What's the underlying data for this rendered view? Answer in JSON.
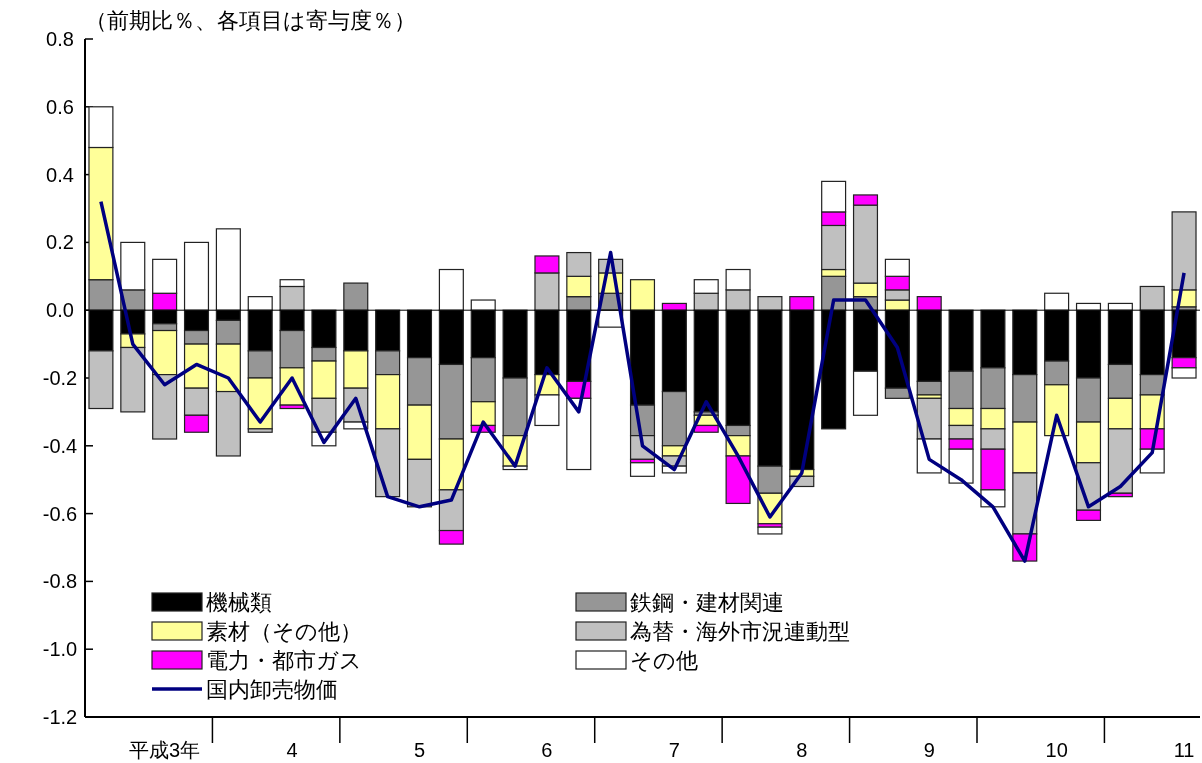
{
  "chart_data": {
    "type": "bar",
    "stacked": true,
    "annotations": [
      "（前期比％、各項目は寄与度％）"
    ],
    "categories": [
      null,
      null,
      "平成3年",
      null,
      null,
      null,
      "4",
      null,
      null,
      null,
      "5",
      null,
      null,
      null,
      "6",
      null,
      null,
      null,
      "7",
      null,
      null,
      null,
      "8",
      null,
      null,
      null,
      "9",
      null,
      null,
      null,
      "10",
      null,
      null,
      null,
      "11"
    ],
    "ylim": [
      -1.2,
      0.8
    ],
    "yticks": [
      0.8,
      0.6,
      0.4,
      0.2,
      {
        "value": 0,
        "label": "0.0"
      },
      -0.2,
      -0.4,
      -0.6,
      -0.8,
      {
        "value": -1,
        "label": "-1.0"
      },
      -1.2
    ],
    "legend": "bottom left",
    "series": [
      {
        "name": "機械類",
        "color": "#000000",
        "values": [
          -0.12,
          -0.07,
          -0.04,
          -0.06,
          -0.03,
          -0.12,
          -0.06,
          -0.11,
          -0.12,
          -0.12,
          -0.14,
          -0.16,
          -0.14,
          -0.2,
          -0.19,
          -0.21,
          null,
          -0.28,
          -0.24,
          -0.3,
          -0.34,
          -0.46,
          -0.47,
          -0.35,
          -0.18,
          -0.23,
          -0.21,
          -0.18,
          -0.17,
          -0.19,
          -0.15,
          -0.2,
          -0.16,
          -0.19,
          -0.14
        ]
      },
      {
        "name": "鉄鋼・建材関連",
        "color": "#969696",
        "values": [
          0.09,
          0.06,
          -0.02,
          -0.04,
          -0.07,
          -0.08,
          -0.11,
          -0.04,
          0.08,
          -0.07,
          -0.14,
          -0.22,
          -0.13,
          -0.17,
          null,
          0.04,
          0.05,
          -0.09,
          -0.16,
          -0.01,
          -0.03,
          -0.08,
          null,
          0.1,
          0.04,
          -0.03,
          -0.04,
          -0.11,
          -0.12,
          -0.14,
          -0.07,
          -0.13,
          -0.1,
          -0.06,
          0.01
        ]
      },
      {
        "name": "素材（その他）",
        "color": "#ffff99",
        "values": [
          0.39,
          -0.04,
          -0.13,
          -0.13,
          -0.14,
          -0.15,
          -0.11,
          -0.11,
          -0.11,
          -0.16,
          -0.16,
          -0.15,
          -0.07,
          -0.09,
          -0.06,
          0.06,
          0.06,
          0.09,
          -0.03,
          -0.03,
          -0.06,
          -0.09,
          -0.02,
          0.02,
          0.04,
          0.03,
          -0.01,
          -0.05,
          -0.06,
          -0.15,
          -0.15,
          -0.12,
          -0.09,
          -0.1,
          0.05
        ]
      },
      {
        "name": "為替・海外市況連動型",
        "color": "#c0c0c0",
        "values": [
          -0.17,
          -0.19,
          -0.19,
          -0.08,
          -0.19,
          -0.01,
          0.07,
          -0.1,
          -0.1,
          -0.2,
          -0.14,
          -0.12,
          null,
          null,
          0.11,
          0.07,
          0.04,
          -0.07,
          -0.03,
          0.05,
          0.06,
          0.04,
          -0.03,
          0.13,
          0.23,
          0.03,
          -0.12,
          -0.04,
          -0.06,
          -0.18,
          null,
          -0.14,
          -0.19,
          0.07,
          0.23
        ]
      },
      {
        "name": "電力・都市ガス",
        "color": "#ff00ff",
        "values": [
          null,
          null,
          0.05,
          -0.05,
          null,
          null,
          -0.01,
          null,
          null,
          null,
          null,
          -0.04,
          -0.02,
          null,
          0.05,
          -0.05,
          null,
          -0.01,
          0.02,
          -0.02,
          -0.14,
          -0.01,
          0.04,
          0.04,
          0.03,
          0.04,
          0.04,
          -0.03,
          -0.12,
          -0.08,
          null,
          -0.03,
          -0.01,
          -0.06,
          -0.03
        ]
      },
      {
        "name": "その他",
        "color": "#ffffff",
        "values": [
          0.12,
          0.14,
          0.1,
          0.2,
          0.24,
          0.04,
          0.02,
          -0.04,
          -0.02,
          null,
          null,
          0.12,
          0.03,
          -0.01,
          -0.09,
          -0.21,
          -0.05,
          -0.04,
          -0.02,
          0.04,
          0.06,
          -0.02,
          null,
          0.09,
          -0.13,
          0.05,
          -0.1,
          -0.1,
          -0.05,
          null,
          0.05,
          0.02,
          0.02,
          -0.07,
          -0.03
        ]
      },
      {
        "name": "国内卸売物価",
        "type": "line",
        "color": "#000080",
        "values": [
          0.32,
          -0.1,
          -0.22,
          -0.16,
          -0.2,
          -0.33,
          -0.2,
          -0.39,
          -0.26,
          -0.55,
          -0.58,
          -0.56,
          -0.33,
          -0.46,
          -0.17,
          -0.3,
          0.17,
          -0.4,
          -0.47,
          -0.27,
          -0.43,
          -0.61,
          -0.48,
          0.03,
          0.03,
          -0.11,
          -0.44,
          -0.5,
          -0.58,
          -0.74,
          -0.31,
          -0.58,
          -0.52,
          -0.42,
          0.11
        ]
      }
    ]
  }
}
